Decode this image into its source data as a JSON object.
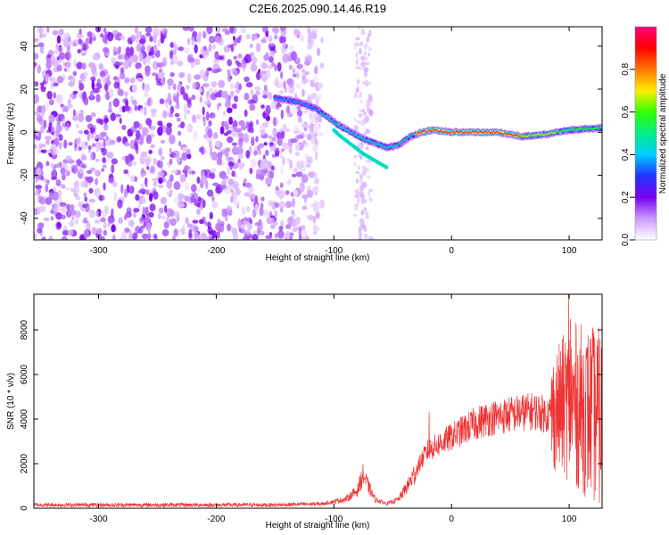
{
  "title": "C2E6.2025.090.14.46.R19",
  "chart_data": [
    {
      "type": "heatmap",
      "xlabel": "Height of straight line (km)",
      "ylabel": "Frequency (Hz)",
      "xlim": [
        -355,
        128
      ],
      "ylim": [
        -50,
        49
      ],
      "x_ticks": [
        -300,
        -200,
        -100,
        0,
        100
      ],
      "y_ticks": [
        -40,
        -20,
        0,
        20,
        40
      ],
      "colorbar": {
        "label": "Normalized spectral amplitude",
        "range": [
          0,
          1
        ],
        "ticks": [
          "0.0",
          "0.2",
          "0.4",
          "0.6",
          "0.8"
        ],
        "colors": [
          "#ffffff",
          "#cc99ff",
          "#7700ee",
          "#2233ff",
          "#00ccff",
          "#00ee88",
          "#33ff00",
          "#ffee00",
          "#ff7700",
          "#ff0000",
          "#ff0077"
        ]
      },
      "ridge": {
        "x": [
          -150,
          -130,
          -115,
          -105,
          -95,
          -85,
          -75,
          -65,
          -55,
          -45,
          -35,
          -25,
          -15,
          0,
          20,
          40,
          60,
          80,
          100,
          128
        ],
        "y": [
          16,
          14,
          11,
          7,
          3,
          0,
          -3,
          -5,
          -7,
          -6,
          -2,
          0,
          1,
          0,
          0,
          0,
          -2,
          -1,
          1,
          2
        ]
      },
      "noise_region_x": [
        -355,
        -110
      ]
    },
    {
      "type": "line",
      "xlabel": "Height of straight line (km)",
      "ylabel": "SNR (10 * v/v)",
      "xlim": [
        -355,
        128
      ],
      "ylim": [
        0,
        9600
      ],
      "x_ticks": [
        -300,
        -200,
        -100,
        0,
        100
      ],
      "y_ticks": [
        0,
        2000,
        4000,
        6000,
        8000
      ],
      "color": "#ee3333",
      "envelope": {
        "x": [
          -355,
          -150,
          -110,
          -90,
          -80,
          -75,
          -70,
          -65,
          -55,
          -45,
          -35,
          -25,
          -20,
          -10,
          0,
          10,
          20,
          30,
          40,
          50,
          60,
          70,
          75,
          80,
          90,
          100,
          110,
          120,
          128
        ],
        "y": [
          150,
          150,
          200,
          400,
          800,
          1500,
          900,
          400,
          200,
          400,
          1200,
          2200,
          2600,
          2900,
          3200,
          3500,
          3800,
          4000,
          4100,
          4200,
          4300,
          4350,
          4300,
          4200,
          4400,
          4800,
          4500,
          4200,
          4000
        ]
      },
      "spikes": [
        {
          "x": 99.5,
          "y": 9600
        },
        {
          "x": 101,
          "y": 8500
        },
        {
          "x": 120,
          "y": 8000
        },
        {
          "x": -19,
          "y": 4300
        }
      ]
    }
  ]
}
